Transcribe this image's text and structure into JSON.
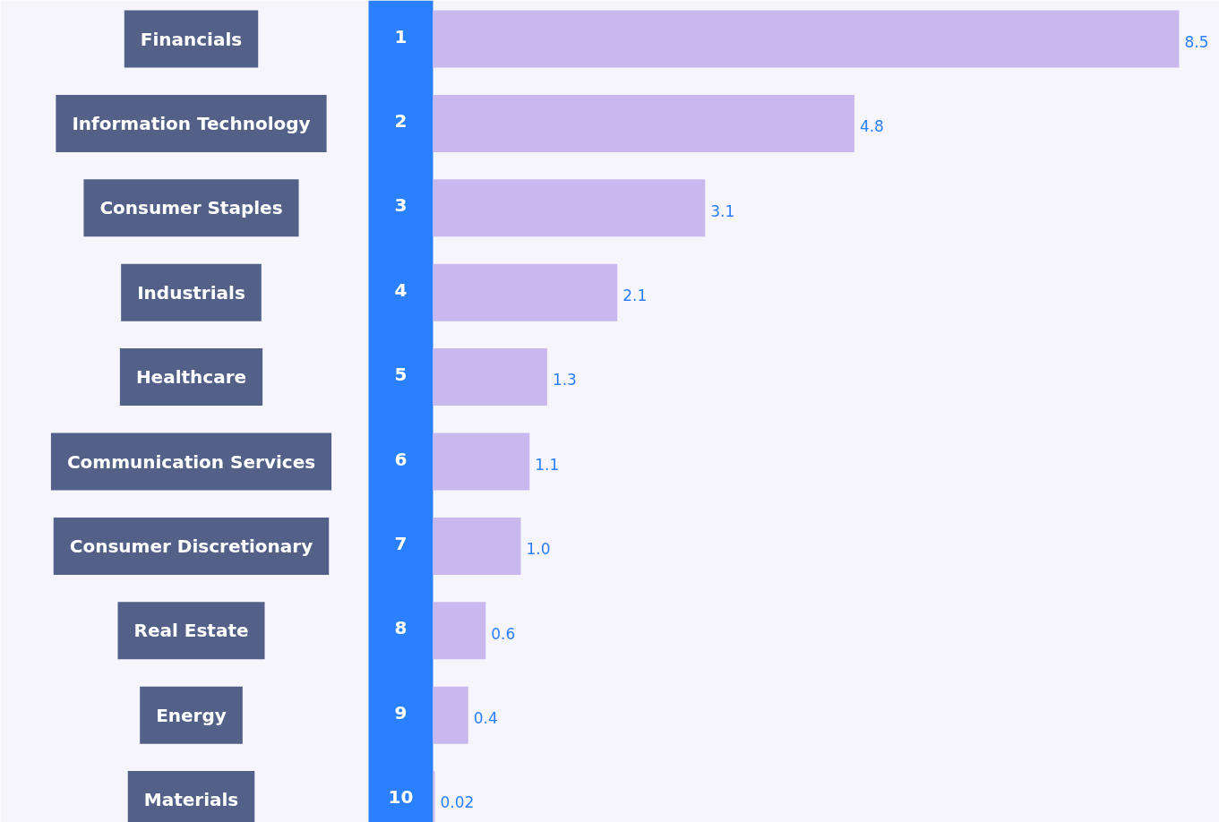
{
  "chart_data": {
    "type": "bar",
    "orientation": "horizontal",
    "categories": [
      "Financials",
      "Information Technology",
      "Consumer Staples",
      "Industrials",
      "Healthcare",
      "Communication Services",
      "Consumer Discretionary",
      "Real Estate",
      "Energy",
      "Materials"
    ],
    "values": [
      8.5,
      4.8,
      3.1,
      2.1,
      1.3,
      1.1,
      1.0,
      0.6,
      0.4,
      0.02
    ],
    "value_labels": [
      "8.5",
      "4.8",
      "3.1",
      "2.1",
      "1.3",
      "1.1",
      "1.0",
      "0.6",
      "0.4",
      "0.02"
    ],
    "color": "#c9b8ee",
    "annotations": [
      "1",
      "2",
      "3",
      "4",
      "5",
      "6",
      "7",
      "8",
      "9",
      "10"
    ]
  }
}
